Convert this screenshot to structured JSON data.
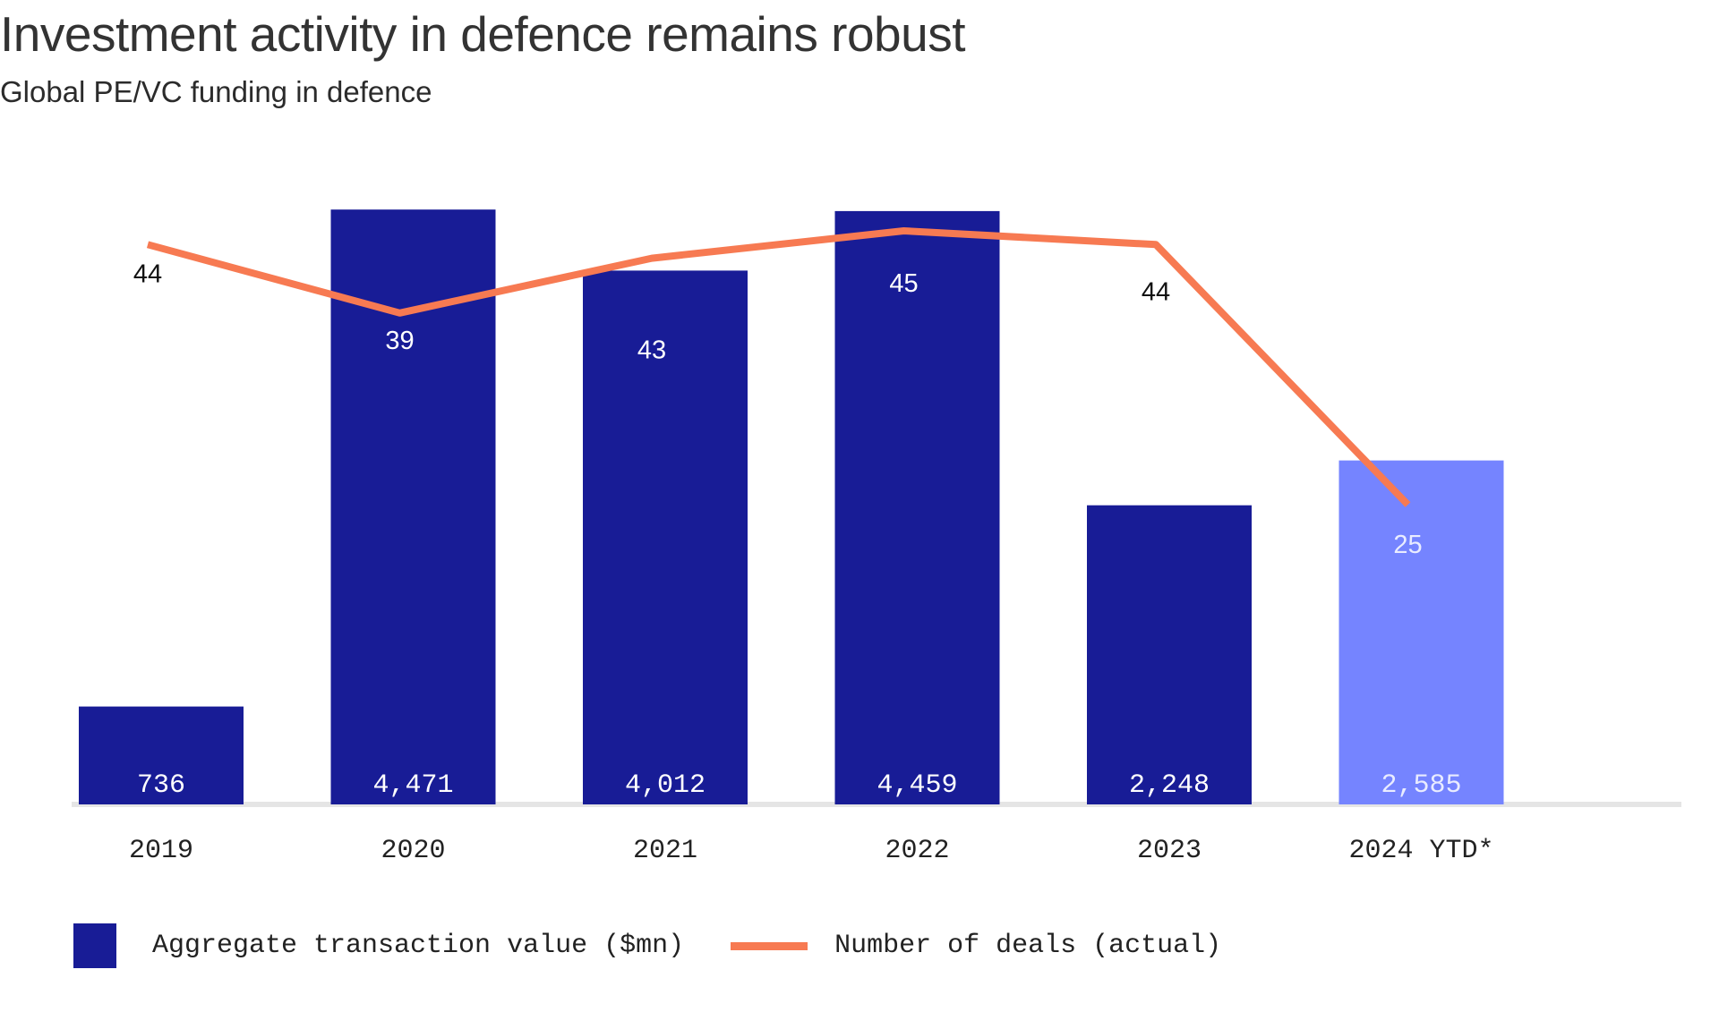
{
  "title": "Investment activity in defence remains robust",
  "subtitle": "Global PE/VC funding in defence",
  "colors": {
    "bar": "#181c96",
    "bar_ytd": "#7584ff",
    "line": "#f77a52",
    "baseline": "#e5e5e5"
  },
  "chart_data": {
    "type": "bar",
    "categories": [
      "2019",
      "2020",
      "2021",
      "2022",
      "2023",
      "2024 YTD*"
    ],
    "series": [
      {
        "name": "Aggregate transaction value ($mn)",
        "type": "bar",
        "values": [
          736,
          4471,
          4012,
          4459,
          2248,
          2585
        ],
        "labels": [
          "736",
          "4,471",
          "4,012",
          "4,459",
          "2,248",
          "2,585"
        ]
      },
      {
        "name": "Number of deals (actual)",
        "type": "line",
        "values": [
          44,
          39,
          43,
          45,
          44,
          25
        ],
        "labels": [
          "44",
          "39",
          "43",
          "45",
          "44",
          "25"
        ]
      }
    ],
    "legend": "bottom-left",
    "grid": false
  }
}
